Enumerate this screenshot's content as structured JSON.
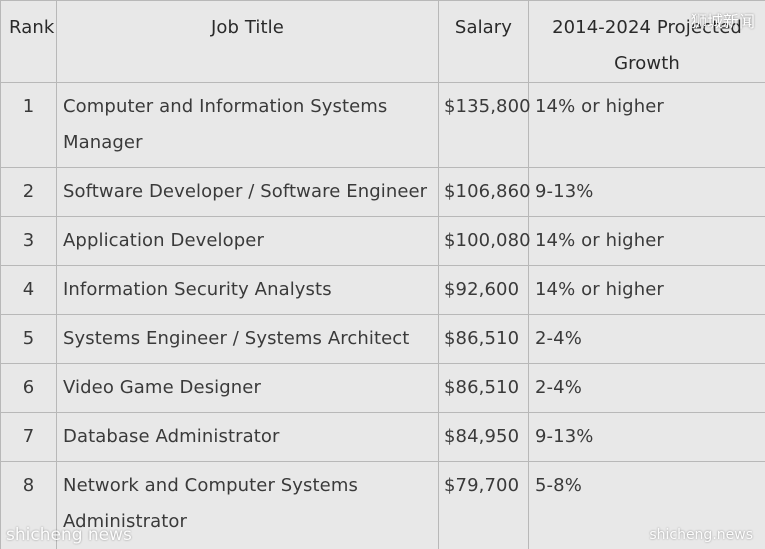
{
  "table": {
    "headers": {
      "rank": "Rank",
      "job_title": "Job Title",
      "salary": "Salary",
      "growth": "2014-2024 Projected Growth"
    },
    "rows": [
      {
        "rank": "1",
        "title": "Computer and Information Systems Manager",
        "salary": "$135,800",
        "growth": "14% or higher"
      },
      {
        "rank": "2",
        "title": "Software Developer / Software Engineer",
        "salary": "$106,860",
        "growth": "9-13%"
      },
      {
        "rank": "3",
        "title": "Application Developer",
        "salary": "$100,080",
        "growth": "14% or higher"
      },
      {
        "rank": "4",
        "title": "Information Security Analysts",
        "salary": "$92,600",
        "growth": "14% or higher"
      },
      {
        "rank": "5",
        "title": "Systems Engineer / Systems Architect",
        "salary": "$86,510",
        "growth": "2-4%"
      },
      {
        "rank": "6",
        "title": "Video Game Designer",
        "salary": "$86,510",
        "growth": "2-4%"
      },
      {
        "rank": "7",
        "title": "Database Administrator",
        "salary": "$84,950",
        "growth": "9-13%"
      },
      {
        "rank": "8",
        "title": "Network and Computer Systems Administrator",
        "salary": "$79,700",
        "growth": "5-8%"
      }
    ]
  },
  "watermarks": {
    "top_right": "狮城新闻",
    "bottom_left": "shicheng news",
    "bottom_right": "shicheng.news"
  }
}
